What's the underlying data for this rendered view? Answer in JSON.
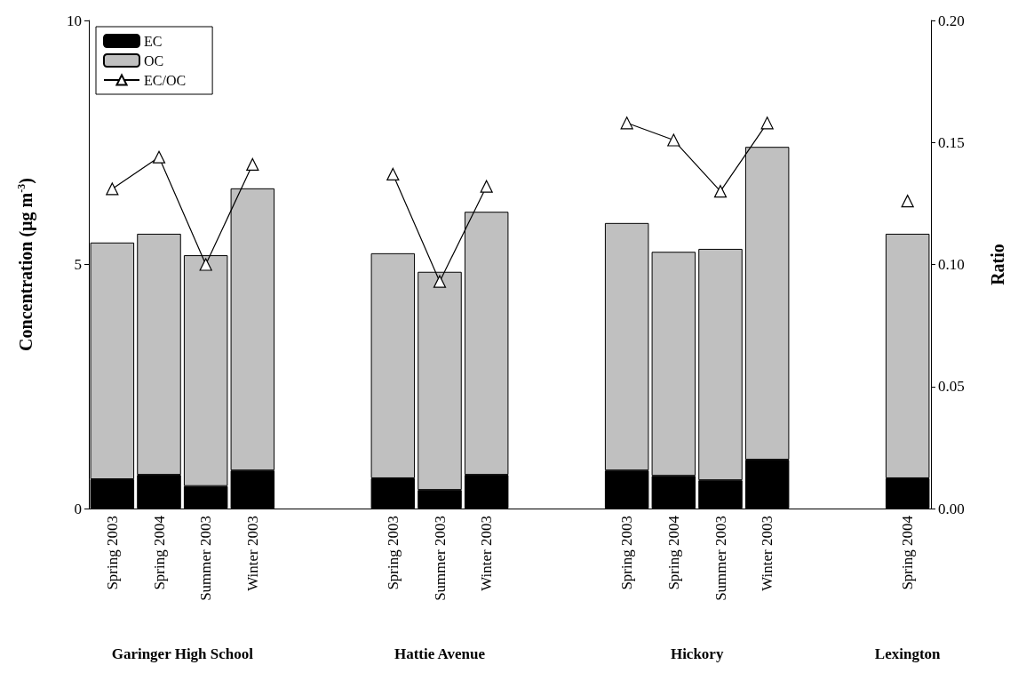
{
  "chart_data": {
    "type": "bar",
    "stacked": true,
    "categories": [
      "Spring 2003",
      "Spring 2004",
      "Summer 2003",
      "Winter 2003",
      null,
      null,
      "Spring 2003",
      "Summer 2003",
      "Winter 2003",
      null,
      null,
      "Spring 2003",
      "Spring 2004",
      "Summer 2003",
      "Winter 2003",
      null,
      null,
      "Spring 2004"
    ],
    "series": [
      {
        "name": "EC",
        "color": "#000000",
        "values": [
          0.6,
          0.69,
          0.46,
          0.78,
          null,
          null,
          0.62,
          0.38,
          0.69,
          null,
          null,
          0.78,
          0.67,
          0.58,
          1.0,
          null,
          null,
          0.62
        ]
      },
      {
        "name": "OC",
        "color": "#c0c0c0",
        "values": [
          4.85,
          4.94,
          4.73,
          5.78,
          null,
          null,
          4.61,
          4.47,
          5.39,
          null,
          null,
          5.07,
          4.59,
          4.74,
          6.41,
          null,
          null,
          5.01
        ]
      },
      {
        "name": "EC/OC",
        "type": "line",
        "axis": "y2",
        "color": "#000000",
        "values": [
          0.131,
          0.144,
          0.1,
          0.141,
          null,
          null,
          0.137,
          0.093,
          0.132,
          null,
          null,
          0.158,
          0.151,
          0.13,
          0.158,
          null,
          null,
          0.126
        ]
      }
    ],
    "ylabel": "Concentration (µg m$^{-3}$)",
    "y2label": "Ratio",
    "ylim": [
      0,
      10
    ],
    "yticks": [
      0,
      5,
      10
    ],
    "y2lim": [
      0,
      0.2
    ],
    "y2ticks": [
      {
        "value": 0,
        "label": "0.00"
      },
      {
        "value": 0.05,
        "label": "0.05"
      },
      {
        "value": 0.1,
        "label": "0.10"
      },
      {
        "value": 0.15,
        "label": "0.15"
      },
      {
        "value": 0.2,
        "label": "0.20"
      }
    ],
    "annotations": [
      "Garinger High School",
      "Hattie Avenue",
      "Hickory",
      "Lexington"
    ],
    "legend": "top left",
    "marker": "triangle",
    "line_style": "solid",
    "grid": false
  }
}
